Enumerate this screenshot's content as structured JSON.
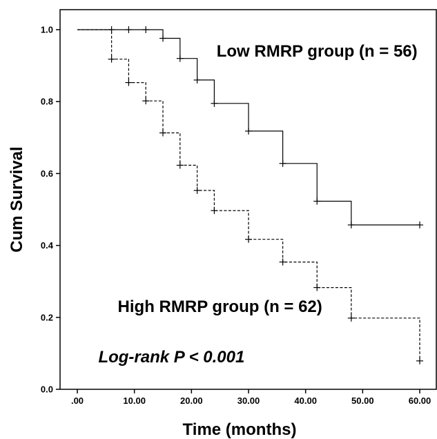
{
  "chart_data": {
    "type": "line",
    "subtype": "kaplan-meier step",
    "xlabel": "Time (months)",
    "ylabel": "Cum Survival",
    "xlim": [
      0,
      62
    ],
    "ylim": [
      0,
      1.0
    ],
    "x_ticks": [
      0,
      10,
      20,
      30,
      40,
      50,
      60
    ],
    "x_tick_labels": [
      ".00",
      "10.00",
      "20.00",
      "30.00",
      "40.00",
      "50.00",
      "60.00"
    ],
    "y_ticks": [
      0,
      0.2,
      0.4,
      0.6,
      0.8,
      1.0
    ],
    "y_tick_labels": [
      "0.0",
      "0.2",
      "0.4",
      "0.6",
      "0.8",
      "1.0"
    ],
    "grid": false,
    "series": [
      {
        "name": "Low RMRP group (n = 56)",
        "line_style": "solid",
        "steps": [
          [
            0,
            1.0
          ],
          [
            15,
            0.976
          ],
          [
            18,
            0.92
          ],
          [
            21,
            0.86
          ],
          [
            24,
            0.795
          ],
          [
            30,
            0.718
          ],
          [
            36,
            0.628
          ],
          [
            42,
            0.523
          ],
          [
            48,
            0.457
          ],
          [
            60,
            0.457
          ]
        ],
        "censored": [
          [
            6,
            1.0
          ],
          [
            9,
            1.0
          ],
          [
            12,
            1.0
          ],
          [
            15,
            0.976
          ],
          [
            18,
            0.92
          ],
          [
            21,
            0.86
          ],
          [
            24,
            0.795
          ],
          [
            30,
            0.718
          ],
          [
            36,
            0.628
          ],
          [
            42,
            0.523
          ],
          [
            48,
            0.457
          ],
          [
            60,
            0.457
          ]
        ]
      },
      {
        "name": "High RMRP group (n = 62)",
        "line_style": "dashed",
        "steps": [
          [
            0,
            1.0
          ],
          [
            6,
            0.918
          ],
          [
            9,
            0.853
          ],
          [
            12,
            0.802
          ],
          [
            15,
            0.713
          ],
          [
            18,
            0.623
          ],
          [
            21,
            0.553
          ],
          [
            24,
            0.497
          ],
          [
            30,
            0.417
          ],
          [
            36,
            0.354
          ],
          [
            42,
            0.283
          ],
          [
            48,
            0.198
          ],
          [
            60,
            0.079
          ]
        ],
        "censored": [
          [
            6,
            0.918
          ],
          [
            9,
            0.853
          ],
          [
            12,
            0.802
          ],
          [
            15,
            0.713
          ],
          [
            18,
            0.623
          ],
          [
            21,
            0.553
          ],
          [
            24,
            0.497
          ],
          [
            30,
            0.417
          ],
          [
            36,
            0.354
          ],
          [
            42,
            0.283
          ],
          [
            48,
            0.198
          ],
          [
            60,
            0.079
          ]
        ]
      }
    ],
    "annotations": [
      {
        "text": "Low RMRP group (n = 56)",
        "x": 42,
        "y": 0.925,
        "italic": false
      },
      {
        "text": "High RMRP group (n = 62)",
        "x": 25,
        "y": 0.215,
        "italic": false
      },
      {
        "text": "Log-rank P < 0.001",
        "x": 16.5,
        "y": 0.075,
        "italic": true
      }
    ]
  }
}
